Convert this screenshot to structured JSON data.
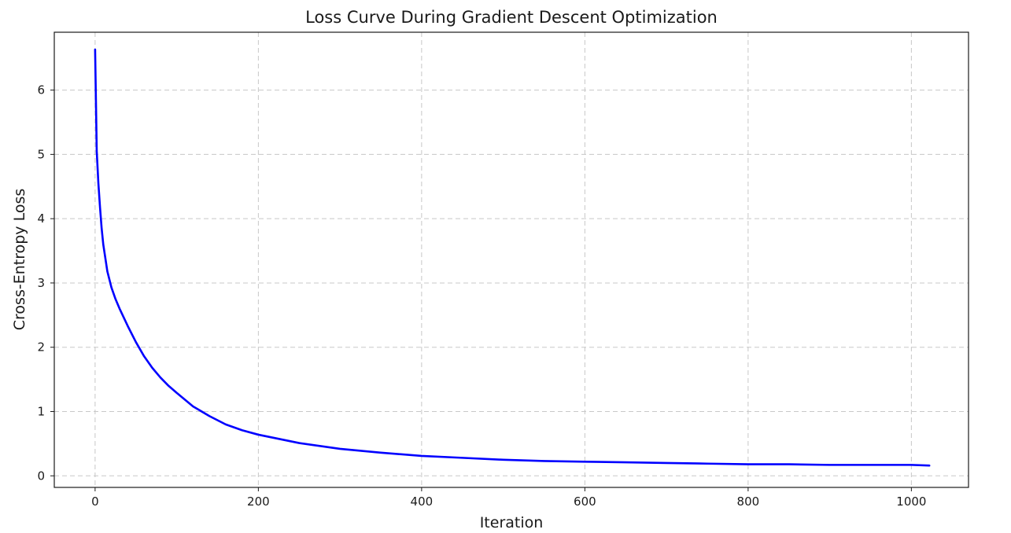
{
  "chart_data": {
    "type": "line",
    "title": "Loss Curve During Gradient Descent Optimization",
    "xlabel": "Iteration",
    "ylabel": "Cross-Entropy Loss",
    "xlim": [
      -50,
      1070
    ],
    "ylim": [
      -0.18,
      6.9
    ],
    "xticks": [
      0,
      200,
      400,
      600,
      800,
      1000
    ],
    "yticks": [
      0,
      1,
      2,
      3,
      4,
      5,
      6
    ],
    "grid": true,
    "line_color": "#0000ff",
    "series": [
      {
        "x": [
          0,
          2,
          4,
          6,
          8,
          10,
          15,
          20,
          25,
          30,
          40,
          50,
          60,
          70,
          80,
          90,
          100,
          120,
          140,
          160,
          180,
          200,
          250,
          300,
          350,
          400,
          450,
          500,
          550,
          600,
          650,
          700,
          750,
          800,
          850,
          900,
          950,
          1000,
          1022
        ],
        "y": [
          6.63,
          5.05,
          4.55,
          4.18,
          3.85,
          3.6,
          3.18,
          2.93,
          2.75,
          2.6,
          2.33,
          2.08,
          1.86,
          1.68,
          1.53,
          1.4,
          1.29,
          1.08,
          0.93,
          0.8,
          0.71,
          0.64,
          0.51,
          0.42,
          0.36,
          0.31,
          0.28,
          0.25,
          0.23,
          0.22,
          0.21,
          0.2,
          0.19,
          0.18,
          0.18,
          0.17,
          0.17,
          0.17,
          0.16
        ]
      }
    ]
  }
}
